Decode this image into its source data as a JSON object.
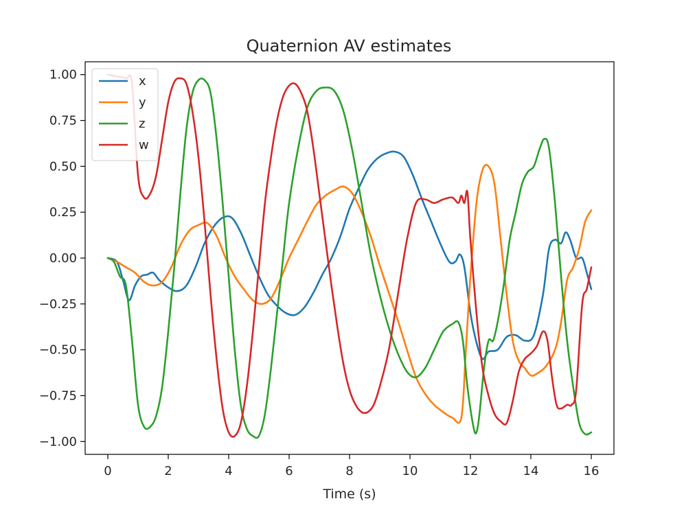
{
  "chart_data": {
    "type": "line",
    "title": "Quaternion AV estimates",
    "xlabel": "Time (s)",
    "ylabel": "",
    "xlim": [
      -0.75,
      16.75
    ],
    "ylim": [
      -1.07,
      1.07
    ],
    "xticks": [
      0,
      2,
      4,
      6,
      8,
      10,
      12,
      14,
      16
    ],
    "xtick_labels": [
      "0",
      "2",
      "4",
      "6",
      "8",
      "10",
      "12",
      "14",
      "16"
    ],
    "yticks": [
      1.0,
      0.75,
      0.5,
      0.25,
      0.0,
      -0.25,
      -0.5,
      -0.75,
      -1.0
    ],
    "ytick_labels": [
      "1.00",
      "0.75",
      "0.50",
      "0.25",
      "0.00",
      "−0.25",
      "−0.50",
      "−0.75",
      "−1.00"
    ],
    "grid": false,
    "legend": "top-left",
    "series": [
      {
        "name": "x",
        "color": "#1f77b4",
        "points": [
          [
            0,
            0
          ],
          [
            0.3,
            -0.02
          ],
          [
            0.5,
            -0.12
          ],
          [
            0.7,
            -0.23
          ],
          [
            0.9,
            -0.15
          ],
          [
            1.1,
            -0.1
          ],
          [
            1.3,
            -0.09
          ],
          [
            1.5,
            -0.08
          ],
          [
            1.7,
            -0.12
          ],
          [
            2.0,
            -0.16
          ],
          [
            2.3,
            -0.18
          ],
          [
            2.6,
            -0.15
          ],
          [
            2.9,
            -0.05
          ],
          [
            3.2,
            0.08
          ],
          [
            3.5,
            0.17
          ],
          [
            3.8,
            0.22
          ],
          [
            4.1,
            0.22
          ],
          [
            4.4,
            0.14
          ],
          [
            4.7,
            0.02
          ],
          [
            5.0,
            -0.1
          ],
          [
            5.3,
            -0.2
          ],
          [
            5.6,
            -0.26
          ],
          [
            5.9,
            -0.3
          ],
          [
            6.2,
            -0.31
          ],
          [
            6.5,
            -0.27
          ],
          [
            6.8,
            -0.19
          ],
          [
            7.1,
            -0.09
          ],
          [
            7.4,
            0.0
          ],
          [
            7.7,
            0.12
          ],
          [
            8.0,
            0.27
          ],
          [
            8.3,
            0.38
          ],
          [
            8.6,
            0.48
          ],
          [
            8.9,
            0.54
          ],
          [
            9.2,
            0.57
          ],
          [
            9.5,
            0.58
          ],
          [
            9.8,
            0.55
          ],
          [
            10.1,
            0.45
          ],
          [
            10.4,
            0.32
          ],
          [
            10.7,
            0.2
          ],
          [
            11.0,
            0.08
          ],
          [
            11.3,
            -0.02
          ],
          [
            11.5,
            -0.02
          ],
          [
            11.65,
            0.02
          ],
          [
            11.8,
            -0.05
          ],
          [
            12.0,
            -0.3
          ],
          [
            12.2,
            -0.46
          ],
          [
            12.4,
            -0.55
          ],
          [
            12.6,
            -0.51
          ],
          [
            12.9,
            -0.5
          ],
          [
            13.2,
            -0.43
          ],
          [
            13.5,
            -0.42
          ],
          [
            13.8,
            -0.45
          ],
          [
            14.1,
            -0.42
          ],
          [
            14.4,
            -0.2
          ],
          [
            14.6,
            0.05
          ],
          [
            14.8,
            0.1
          ],
          [
            15.0,
            0.08
          ],
          [
            15.15,
            0.14
          ],
          [
            15.3,
            0.1
          ],
          [
            15.5,
            0.0
          ],
          [
            15.7,
            0.0
          ],
          [
            15.85,
            -0.08
          ],
          [
            16.0,
            -0.17
          ]
        ]
      },
      {
        "name": "y",
        "color": "#ff7f0e",
        "points": [
          [
            0,
            0
          ],
          [
            0.3,
            -0.02
          ],
          [
            0.6,
            -0.05
          ],
          [
            0.9,
            -0.08
          ],
          [
            1.2,
            -0.13
          ],
          [
            1.5,
            -0.15
          ],
          [
            1.8,
            -0.13
          ],
          [
            2.1,
            -0.05
          ],
          [
            2.4,
            0.07
          ],
          [
            2.7,
            0.15
          ],
          [
            3.0,
            0.18
          ],
          [
            3.3,
            0.19
          ],
          [
            3.6,
            0.12
          ],
          [
            3.9,
            0.0
          ],
          [
            4.2,
            -0.1
          ],
          [
            4.5,
            -0.17
          ],
          [
            4.8,
            -0.23
          ],
          [
            5.1,
            -0.25
          ],
          [
            5.4,
            -0.22
          ],
          [
            5.7,
            -0.12
          ],
          [
            6.0,
            0.0
          ],
          [
            6.3,
            0.1
          ],
          [
            6.6,
            0.2
          ],
          [
            6.9,
            0.29
          ],
          [
            7.2,
            0.34
          ],
          [
            7.5,
            0.37
          ],
          [
            7.8,
            0.39
          ],
          [
            8.1,
            0.35
          ],
          [
            8.4,
            0.25
          ],
          [
            8.7,
            0.12
          ],
          [
            9.0,
            -0.04
          ],
          [
            9.3,
            -0.19
          ],
          [
            9.6,
            -0.34
          ],
          [
            9.9,
            -0.5
          ],
          [
            10.2,
            -0.65
          ],
          [
            10.5,
            -0.74
          ],
          [
            10.8,
            -0.8
          ],
          [
            11.1,
            -0.84
          ],
          [
            11.4,
            -0.87
          ],
          [
            11.7,
            -0.87
          ],
          [
            11.85,
            -0.5
          ],
          [
            12.0,
            -0.1
          ],
          [
            12.2,
            0.3
          ],
          [
            12.4,
            0.48
          ],
          [
            12.6,
            0.5
          ],
          [
            12.8,
            0.4
          ],
          [
            13.0,
            0.1
          ],
          [
            13.2,
            -0.2
          ],
          [
            13.4,
            -0.45
          ],
          [
            13.6,
            -0.56
          ],
          [
            13.8,
            -0.6
          ],
          [
            14.0,
            -0.64
          ],
          [
            14.2,
            -0.63
          ],
          [
            14.5,
            -0.59
          ],
          [
            14.8,
            -0.5
          ],
          [
            15.0,
            -0.35
          ],
          [
            15.2,
            -0.12
          ],
          [
            15.4,
            -0.05
          ],
          [
            15.6,
            0.05
          ],
          [
            15.8,
            0.2
          ],
          [
            16.0,
            0.26
          ]
        ]
      },
      {
        "name": "z",
        "color": "#2ca02c",
        "points": [
          [
            0,
            0
          ],
          [
            0.2,
            -0.02
          ],
          [
            0.4,
            -0.1
          ],
          [
            0.6,
            -0.15
          ],
          [
            0.8,
            -0.45
          ],
          [
            1.0,
            -0.8
          ],
          [
            1.2,
            -0.92
          ],
          [
            1.4,
            -0.92
          ],
          [
            1.6,
            -0.86
          ],
          [
            1.8,
            -0.7
          ],
          [
            2.0,
            -0.4
          ],
          [
            2.2,
            -0.05
          ],
          [
            2.4,
            0.35
          ],
          [
            2.6,
            0.7
          ],
          [
            2.8,
            0.9
          ],
          [
            3.0,
            0.97
          ],
          [
            3.2,
            0.97
          ],
          [
            3.4,
            0.9
          ],
          [
            3.6,
            0.65
          ],
          [
            3.8,
            0.3
          ],
          [
            4.0,
            -0.1
          ],
          [
            4.2,
            -0.5
          ],
          [
            4.4,
            -0.8
          ],
          [
            4.6,
            -0.93
          ],
          [
            4.8,
            -0.97
          ],
          [
            5.0,
            -0.97
          ],
          [
            5.2,
            -0.85
          ],
          [
            5.4,
            -0.6
          ],
          [
            5.6,
            -0.3
          ],
          [
            5.8,
            0.0
          ],
          [
            6.0,
            0.3
          ],
          [
            6.3,
            0.6
          ],
          [
            6.6,
            0.82
          ],
          [
            6.9,
            0.91
          ],
          [
            7.2,
            0.93
          ],
          [
            7.5,
            0.91
          ],
          [
            7.8,
            0.8
          ],
          [
            8.1,
            0.58
          ],
          [
            8.4,
            0.3
          ],
          [
            8.7,
            0.02
          ],
          [
            9.0,
            -0.2
          ],
          [
            9.3,
            -0.38
          ],
          [
            9.6,
            -0.52
          ],
          [
            9.9,
            -0.62
          ],
          [
            10.2,
            -0.65
          ],
          [
            10.5,
            -0.6
          ],
          [
            10.8,
            -0.5
          ],
          [
            11.1,
            -0.4
          ],
          [
            11.4,
            -0.36
          ],
          [
            11.6,
            -0.35
          ],
          [
            11.75,
            -0.45
          ],
          [
            11.9,
            -0.7
          ],
          [
            12.1,
            -0.92
          ],
          [
            12.2,
            -0.95
          ],
          [
            12.3,
            -0.85
          ],
          [
            12.45,
            -0.6
          ],
          [
            12.6,
            -0.45
          ],
          [
            12.75,
            -0.45
          ],
          [
            12.9,
            -0.35
          ],
          [
            13.1,
            -0.15
          ],
          [
            13.3,
            0.1
          ],
          [
            13.5,
            0.25
          ],
          [
            13.7,
            0.4
          ],
          [
            13.9,
            0.47
          ],
          [
            14.1,
            0.5
          ],
          [
            14.3,
            0.6
          ],
          [
            14.45,
            0.65
          ],
          [
            14.6,
            0.6
          ],
          [
            14.8,
            0.3
          ],
          [
            15.0,
            -0.1
          ],
          [
            15.2,
            -0.45
          ],
          [
            15.4,
            -0.7
          ],
          [
            15.6,
            -0.9
          ],
          [
            15.8,
            -0.96
          ],
          [
            16.0,
            -0.95
          ]
        ]
      },
      {
        "name": "w",
        "color": "#d62728",
        "points": [
          [
            0,
            1.0
          ],
          [
            0.3,
            0.99
          ],
          [
            0.6,
            0.98
          ],
          [
            0.8,
            0.95
          ],
          [
            1.0,
            0.45
          ],
          [
            1.2,
            0.33
          ],
          [
            1.4,
            0.35
          ],
          [
            1.6,
            0.45
          ],
          [
            1.8,
            0.65
          ],
          [
            2.0,
            0.85
          ],
          [
            2.2,
            0.96
          ],
          [
            2.4,
            0.98
          ],
          [
            2.6,
            0.95
          ],
          [
            2.8,
            0.8
          ],
          [
            3.0,
            0.55
          ],
          [
            3.2,
            0.2
          ],
          [
            3.4,
            -0.2
          ],
          [
            3.6,
            -0.55
          ],
          [
            3.8,
            -0.82
          ],
          [
            4.0,
            -0.95
          ],
          [
            4.2,
            -0.97
          ],
          [
            4.4,
            -0.9
          ],
          [
            4.6,
            -0.7
          ],
          [
            4.8,
            -0.4
          ],
          [
            5.0,
            -0.05
          ],
          [
            5.2,
            0.3
          ],
          [
            5.4,
            0.55
          ],
          [
            5.6,
            0.75
          ],
          [
            5.8,
            0.88
          ],
          [
            6.0,
            0.94
          ],
          [
            6.2,
            0.95
          ],
          [
            6.4,
            0.9
          ],
          [
            6.6,
            0.8
          ],
          [
            6.8,
            0.6
          ],
          [
            7.0,
            0.35
          ],
          [
            7.2,
            0.1
          ],
          [
            7.4,
            -0.15
          ],
          [
            7.6,
            -0.38
          ],
          [
            7.8,
            -0.58
          ],
          [
            8.0,
            -0.72
          ],
          [
            8.2,
            -0.8
          ],
          [
            8.4,
            -0.84
          ],
          [
            8.6,
            -0.84
          ],
          [
            8.8,
            -0.8
          ],
          [
            9.0,
            -0.7
          ],
          [
            9.3,
            -0.5
          ],
          [
            9.6,
            -0.2
          ],
          [
            9.9,
            0.1
          ],
          [
            10.2,
            0.3
          ],
          [
            10.5,
            0.32
          ],
          [
            10.8,
            0.3
          ],
          [
            11.1,
            0.32
          ],
          [
            11.4,
            0.33
          ],
          [
            11.6,
            0.3
          ],
          [
            11.7,
            0.34
          ],
          [
            11.8,
            0.3
          ],
          [
            11.9,
            0.36
          ],
          [
            12.0,
            0.1
          ],
          [
            12.2,
            -0.3
          ],
          [
            12.4,
            -0.6
          ],
          [
            12.6,
            -0.75
          ],
          [
            12.8,
            -0.85
          ],
          [
            13.0,
            -0.89
          ],
          [
            13.2,
            -0.9
          ],
          [
            13.4,
            -0.78
          ],
          [
            13.6,
            -0.62
          ],
          [
            13.8,
            -0.55
          ],
          [
            14.0,
            -0.52
          ],
          [
            14.2,
            -0.48
          ],
          [
            14.4,
            -0.4
          ],
          [
            14.55,
            -0.45
          ],
          [
            14.7,
            -0.65
          ],
          [
            14.85,
            -0.8
          ],
          [
            15.0,
            -0.82
          ],
          [
            15.2,
            -0.8
          ],
          [
            15.35,
            -0.8
          ],
          [
            15.5,
            -0.72
          ],
          [
            15.7,
            -0.25
          ],
          [
            15.85,
            -0.17
          ],
          [
            16.0,
            -0.05
          ]
        ]
      }
    ]
  }
}
